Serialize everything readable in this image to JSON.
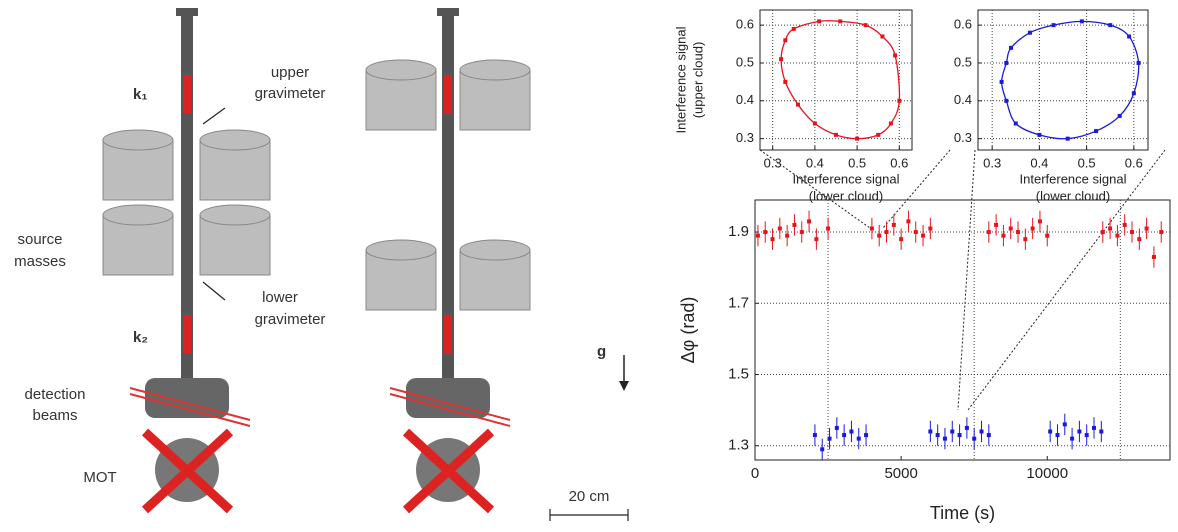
{
  "diagram": {
    "k1": "k₁",
    "k2": "k₂",
    "upper": [
      "upper",
      "gravimeter"
    ],
    "lower": [
      "lower",
      "gravimeter"
    ],
    "source": [
      "source",
      "masses"
    ],
    "detection": [
      "detection",
      "beams"
    ],
    "mot": "MOT",
    "g": "g",
    "scale": "20 cm"
  },
  "chart_data": [
    {
      "type": "scatter",
      "ylabel": [
        "Interference signal",
        "(upper cloud)"
      ],
      "xlabel": [
        "Interference signal",
        "(lower cloud)"
      ],
      "xlim": [
        0.27,
        0.63
      ],
      "ylim": [
        0.27,
        0.64
      ],
      "xticks": [
        0.3,
        0.4,
        0.5,
        0.6
      ],
      "yticks": [
        0.3,
        0.4,
        0.5,
        0.6
      ],
      "grid": true,
      "closed_curve": true,
      "series": [
        {
          "color": "#e8141b",
          "x": [
            0.33,
            0.35,
            0.41,
            0.46,
            0.52,
            0.56,
            0.59,
            0.6,
            0.58,
            0.55,
            0.5,
            0.45,
            0.4,
            0.36,
            0.33,
            0.32
          ],
          "values": [
            0.56,
            0.59,
            0.61,
            0.61,
            0.6,
            0.57,
            0.52,
            0.4,
            0.34,
            0.31,
            0.3,
            0.31,
            0.34,
            0.39,
            0.45,
            0.51
          ]
        }
      ]
    },
    {
      "type": "scatter",
      "xlabel": [
        "Interference signal",
        "(lower cloud)"
      ],
      "xlim": [
        0.27,
        0.63
      ],
      "ylim": [
        0.27,
        0.64
      ],
      "xticks": [
        0.3,
        0.4,
        0.5,
        0.6
      ],
      "yticks": [
        0.3,
        0.4,
        0.5,
        0.6
      ],
      "grid": true,
      "closed_curve": true,
      "series": [
        {
          "color": "#1a1adf",
          "x": [
            0.33,
            0.34,
            0.38,
            0.43,
            0.49,
            0.55,
            0.59,
            0.61,
            0.6,
            0.57,
            0.52,
            0.46,
            0.4,
            0.35,
            0.33,
            0.32
          ],
          "values": [
            0.5,
            0.54,
            0.58,
            0.6,
            0.61,
            0.6,
            0.57,
            0.5,
            0.42,
            0.36,
            0.32,
            0.3,
            0.31,
            0.34,
            0.4,
            0.45
          ]
        }
      ]
    },
    {
      "type": "errorbar",
      "xlabel": "Time (s)",
      "ylabel": "Δφ (rad)",
      "xlim": [
        0,
        14200
      ],
      "ylim": [
        1.26,
        1.99
      ],
      "xticks": [
        0,
        5000,
        10000
      ],
      "xgrid": [
        2500,
        7500,
        12500
      ],
      "yticks": [
        1.3,
        1.5,
        1.7,
        1.9
      ],
      "grid": true,
      "series": [
        {
          "color": "#e8141b",
          "x": [
            100,
            350,
            600,
            850,
            1100,
            1350,
            1600,
            1850,
            2100,
            2500,
            4000,
            4250,
            4500,
            4750,
            5000,
            5250,
            5500,
            5750,
            6000,
            8000,
            8250,
            8500,
            8750,
            9000,
            9250,
            9500,
            9750,
            10000,
            11900,
            12150,
            12400,
            12650,
            12900,
            13150,
            13400,
            13650,
            13900
          ],
          "values": [
            1.89,
            1.9,
            1.88,
            1.91,
            1.89,
            1.92,
            1.9,
            1.93,
            1.88,
            1.91,
            1.91,
            1.89,
            1.9,
            1.92,
            1.88,
            1.93,
            1.9,
            1.89,
            1.91,
            1.9,
            1.92,
            1.89,
            1.91,
            1.9,
            1.88,
            1.91,
            1.93,
            1.89,
            1.9,
            1.91,
            1.89,
            1.92,
            1.9,
            1.88,
            1.91,
            1.83,
            1.9
          ],
          "errors": [
            0.03,
            0.03,
            0.03,
            0.03,
            0.03,
            0.03,
            0.03,
            0.03,
            0.03,
            0.03,
            0.03,
            0.03,
            0.03,
            0.03,
            0.03,
            0.03,
            0.03,
            0.03,
            0.03,
            0.03,
            0.03,
            0.03,
            0.03,
            0.03,
            0.03,
            0.03,
            0.03,
            0.03,
            0.03,
            0.03,
            0.03,
            0.03,
            0.03,
            0.03,
            0.03,
            0.03,
            0.03
          ]
        },
        {
          "color": "#1a1adf",
          "x": [
            2050,
            2300,
            2550,
            2800,
            3050,
            3300,
            3550,
            3800,
            6000,
            6250,
            6500,
            6750,
            7000,
            7250,
            7500,
            7750,
            8000,
            10100,
            10350,
            10600,
            10850,
            11100,
            11350,
            11600,
            11850
          ],
          "values": [
            1.33,
            1.29,
            1.32,
            1.35,
            1.33,
            1.34,
            1.32,
            1.33,
            1.34,
            1.33,
            1.32,
            1.34,
            1.33,
            1.35,
            1.32,
            1.34,
            1.33,
            1.34,
            1.33,
            1.36,
            1.32,
            1.34,
            1.33,
            1.35,
            1.34
          ],
          "errors": [
            0.03,
            0.03,
            0.03,
            0.03,
            0.03,
            0.03,
            0.03,
            0.03,
            0.03,
            0.03,
            0.03,
            0.03,
            0.03,
            0.03,
            0.03,
            0.03,
            0.03,
            0.03,
            0.03,
            0.03,
            0.03,
            0.03,
            0.03,
            0.03,
            0.03
          ]
        }
      ]
    }
  ]
}
